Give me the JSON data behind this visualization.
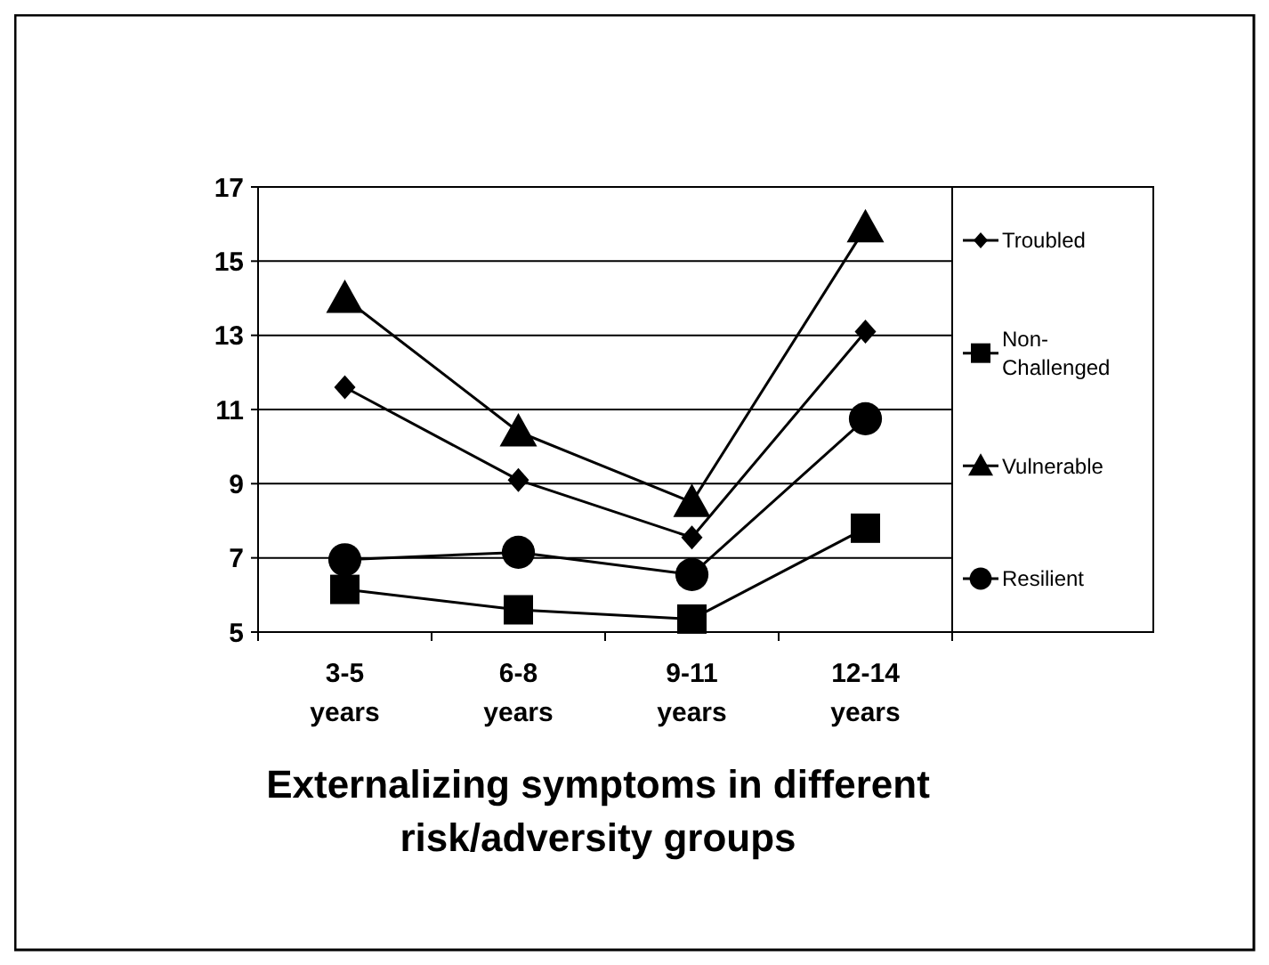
{
  "chart_data": {
    "type": "line",
    "title": "Externalizing symptoms in different risk/adversity groups",
    "categories": [
      "3-5 years",
      "6-8 years",
      "9-11 years",
      "12-14 years"
    ],
    "series": [
      {
        "name": "Troubled",
        "color": "#000000",
        "marker": "diamond",
        "values": [
          11.6,
          9.1,
          7.55,
          13.1
        ]
      },
      {
        "name": "Non-Challenged",
        "color": "#000000",
        "marker": "square",
        "values": [
          6.15,
          5.6,
          5.35,
          7.8
        ]
      },
      {
        "name": "Vulnerable",
        "color": "#000000",
        "marker": "triangle",
        "values": [
          14,
          10.4,
          8.5,
          15.9
        ]
      },
      {
        "name": "Resilient",
        "color": "#000000",
        "marker": "circle",
        "values": [
          6.95,
          7.15,
          6.55,
          10.75
        ]
      }
    ],
    "ylim": [
      5,
      17
    ],
    "yticks": [
      5,
      7,
      9,
      11,
      13,
      15,
      17
    ],
    "grid": "y",
    "legend": "right",
    "line_style": "solid"
  }
}
